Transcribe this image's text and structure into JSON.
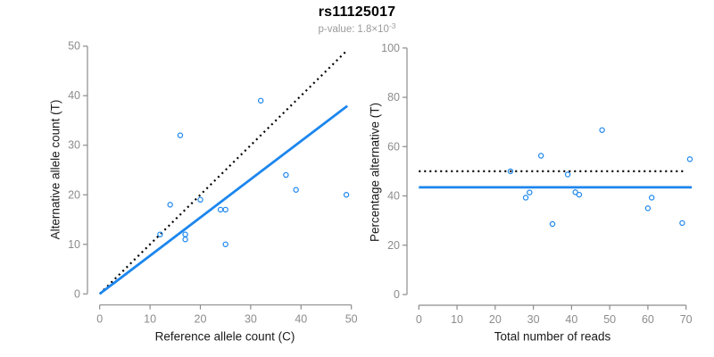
{
  "figure": {
    "title": "rs11125017",
    "subtitle": {
      "label": "p-value:",
      "mantissa": "1.8",
      "multiplier": "×",
      "base": "10",
      "exponent": "-3"
    }
  },
  "colors": {
    "background": "#ffffff",
    "point_blue": "#1C86EE",
    "fit_line_blue": "#1C86EE",
    "dotted_line_black": "#000000",
    "axis_gray": "#8c8c8c",
    "tick_label_gray": "#8c8c8c",
    "axis_title_black": "#1a1a1a",
    "subtitle_gray": "#9b9b9b"
  },
  "chart_data": [
    {
      "id": "left",
      "type": "scatter",
      "xlabel": "Reference allele count (C)",
      "ylabel": "Alternative allele count (T)",
      "xlim": [
        0,
        50
      ],
      "ylim": [
        0,
        50
      ],
      "xticks": [
        0,
        10,
        20,
        30,
        40,
        50
      ],
      "yticks": [
        0,
        10,
        20,
        30,
        40,
        50
      ],
      "grid": false,
      "legend": "none",
      "points": [
        [
          32,
          39
        ],
        [
          16,
          32
        ],
        [
          37,
          24
        ],
        [
          39,
          21
        ],
        [
          49,
          20
        ],
        [
          20,
          19
        ],
        [
          14,
          18
        ],
        [
          24,
          17
        ],
        [
          25,
          17
        ],
        [
          12,
          12
        ],
        [
          17,
          12
        ],
        [
          17,
          11
        ],
        [
          25,
          10
        ]
      ],
      "lines": [
        {
          "name": "identity-line",
          "style": "dotted",
          "color": "#000000",
          "slope": 1,
          "intercept": 0,
          "x_range": [
            0,
            49
          ]
        },
        {
          "name": "fit-line",
          "style": "solid",
          "color": "#1C86EE",
          "slope": 0.771,
          "intercept": 0,
          "x_range": [
            0,
            49.2
          ]
        }
      ]
    },
    {
      "id": "right",
      "type": "scatter",
      "xlabel": "Total number of reads",
      "ylabel": "Percentage alternative (T)",
      "xlim": [
        0,
        70
      ],
      "ylim": [
        0,
        100
      ],
      "xticks": [
        0,
        10,
        20,
        30,
        40,
        50,
        60,
        70
      ],
      "yticks": [
        0,
        20,
        40,
        60,
        80,
        100
      ],
      "grid": false,
      "legend": "none",
      "points": [
        [
          71,
          54.9
        ],
        [
          48,
          66.7
        ],
        [
          61,
          39.3
        ],
        [
          60,
          35.0
        ],
        [
          69,
          29.0
        ],
        [
          39,
          48.7
        ],
        [
          32,
          56.3
        ],
        [
          41,
          41.5
        ],
        [
          42,
          40.5
        ],
        [
          24,
          50.0
        ],
        [
          29,
          41.4
        ],
        [
          28,
          39.3
        ],
        [
          35,
          28.6
        ]
      ],
      "lines": [
        {
          "name": "expected-50pct-line",
          "style": "dotted",
          "color": "#000000",
          "slope": 0,
          "intercept": 50,
          "x_range": [
            0,
            70
          ]
        },
        {
          "name": "observed-mean-line",
          "style": "solid",
          "color": "#1C86EE",
          "slope": 0,
          "intercept": 43.5,
          "x_range": [
            0,
            71.5
          ]
        }
      ]
    }
  ]
}
